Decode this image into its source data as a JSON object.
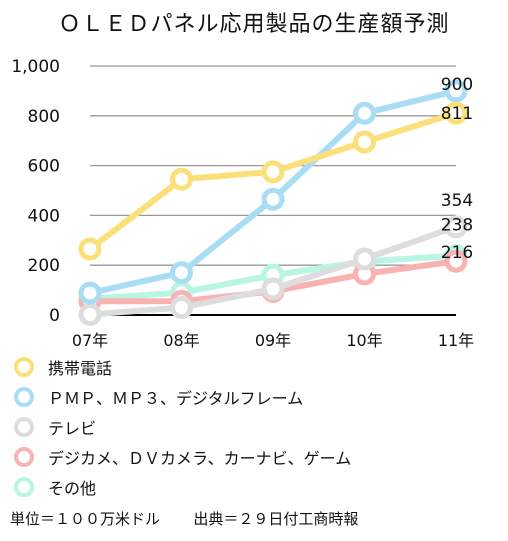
{
  "chart_data": {
    "type": "line",
    "title": "ＯＬＥＤパネル応用製品の生産額予測",
    "categories": [
      "07年",
      "08年",
      "09年",
      "10年",
      "11年"
    ],
    "ylim": [
      0,
      1000
    ],
    "yticks": [
      "0",
      "200",
      "400",
      "600",
      "800",
      "1,000"
    ],
    "grid": true,
    "legend_position": "bottom",
    "series": [
      {
        "name": "携帯電話",
        "color": "#FBE07A",
        "values": [
          265,
          545,
          575,
          695,
          811
        ]
      },
      {
        "name": "ＰＭＰ、ＭＰ３、デジタルフレーム",
        "color": "#A9DDF4",
        "values": [
          88,
          170,
          465,
          810,
          900
        ]
      },
      {
        "name": "テレビ",
        "color": "#DDDDDD",
        "values": [
          2,
          30,
          105,
          225,
          354
        ]
      },
      {
        "name": "デジカメ、ＤＶカメラ、カーナビ、ゲーム",
        "color": "#F9B2B2",
        "values": [
          55,
          55,
          95,
          165,
          216
        ]
      },
      {
        "name": "その他",
        "color": "#B8F5E2",
        "values": [
          65,
          90,
          160,
          215,
          238
        ]
      }
    ],
    "data_labels": [
      {
        "text": "900",
        "series": 1,
        "index": 4
      },
      {
        "text": "811",
        "series": 0,
        "index": 4
      },
      {
        "text": "354",
        "series": 2,
        "index": 4
      },
      {
        "text": "238",
        "series": 4,
        "index": 4
      },
      {
        "text": "216",
        "series": 3,
        "index": 4
      }
    ]
  },
  "footer": {
    "unit": "単位＝１００万米ドル",
    "source": "出典＝２９日付工商時報"
  }
}
